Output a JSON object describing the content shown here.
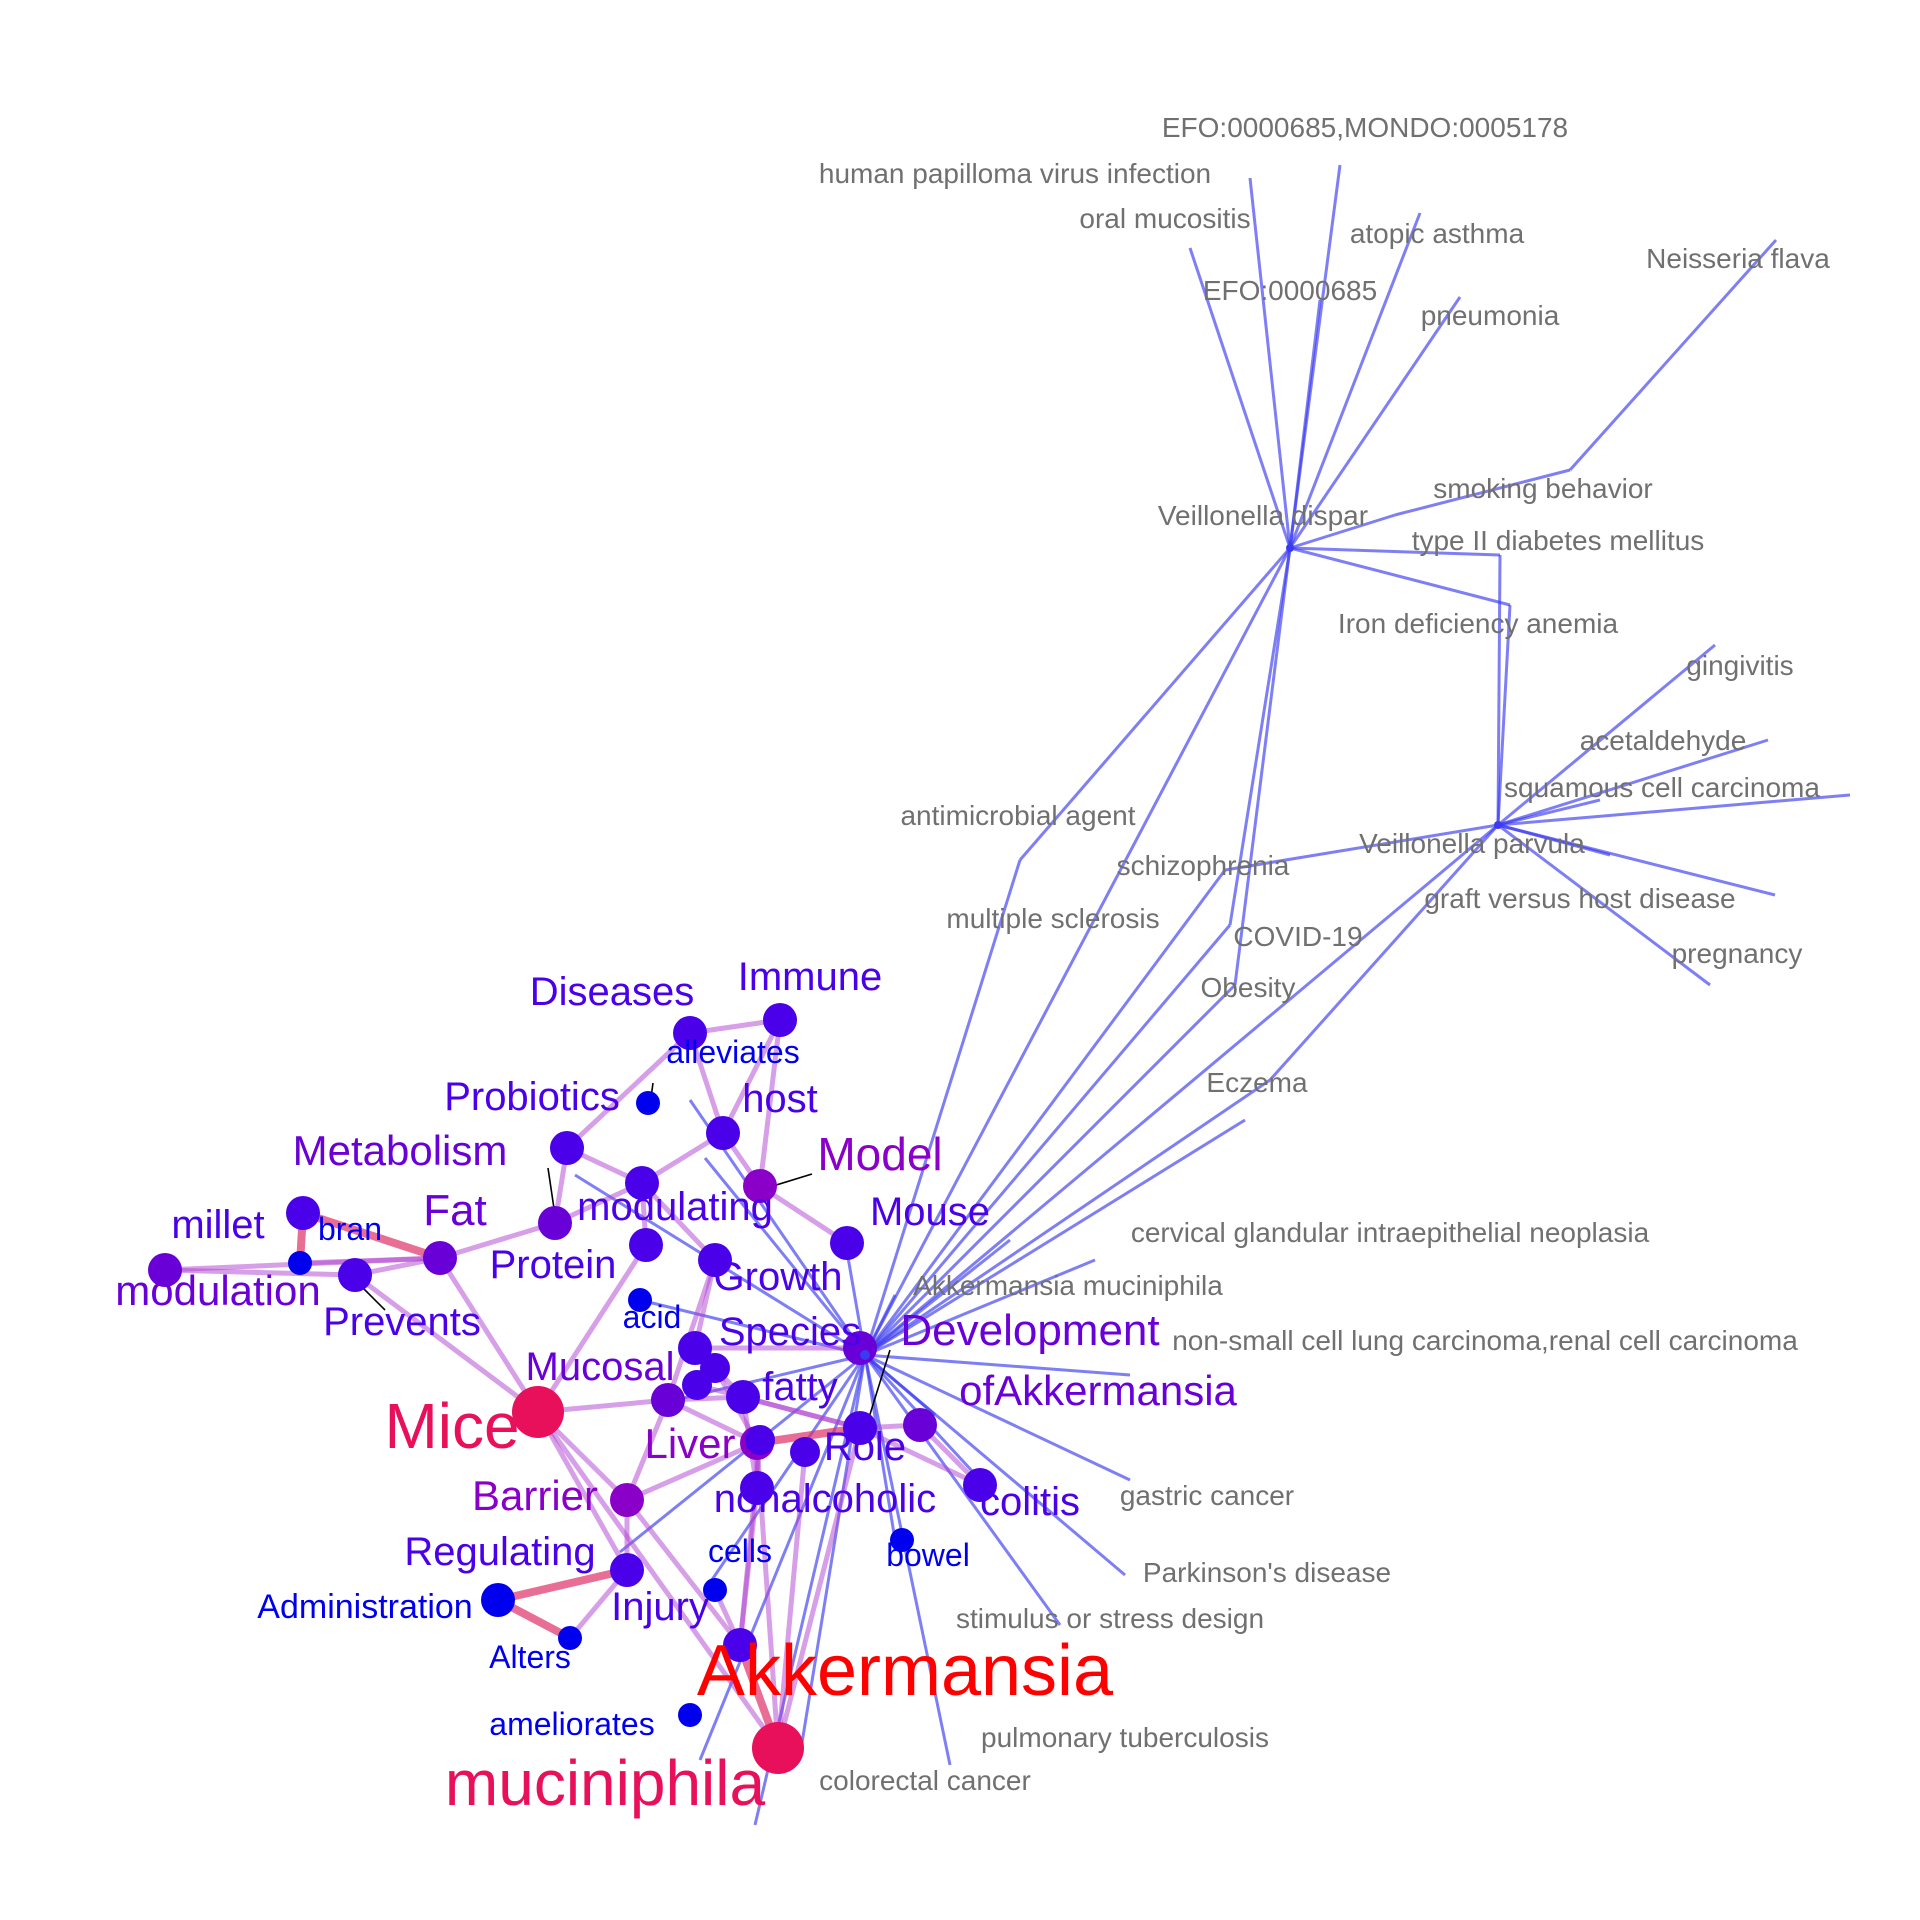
{
  "colors": {
    "background": "#ffffff",
    "word_edge": "#b040d0",
    "word_edge_strong": "#e0306a",
    "ontology_edge": "#3a3af0",
    "ontology_label": "#707070",
    "hub_red": "#ff0000",
    "hub_crimson": "#e8105a",
    "word_blue": "#0000ee",
    "word_indigo": "#4a00e8",
    "word_violet": "#6a00d8",
    "word_purple": "#8a00c8"
  },
  "word_nodes": [
    {
      "id": "akkermansia",
      "label": "Akkermansia",
      "color": "#ff0000",
      "size": 72
    },
    {
      "id": "muciniphila",
      "label": "muciniphila",
      "color": "#e8105a",
      "size": 64
    },
    {
      "id": "mice",
      "label": "Mice",
      "color": "#e8105a",
      "size": 64
    },
    {
      "id": "diseases",
      "label": "Diseases",
      "color": "#4a00e8",
      "size": 40
    },
    {
      "id": "immune",
      "label": "Immune",
      "color": "#4a00e8",
      "size": 40
    },
    {
      "id": "alleviates",
      "label": "alleviates",
      "color": "#0000ee",
      "size": 32
    },
    {
      "id": "probiotics",
      "label": "Probiotics",
      "color": "#4a00e8",
      "size": 40
    },
    {
      "id": "host",
      "label": "host",
      "color": "#4a00e8",
      "size": 40
    },
    {
      "id": "metabolism",
      "label": "Metabolism",
      "color": "#6a00d8",
      "size": 42
    },
    {
      "id": "model",
      "label": "Model",
      "color": "#8a00c8",
      "size": 46
    },
    {
      "id": "modulating",
      "label": "modulating",
      "color": "#4a00e8",
      "size": 40
    },
    {
      "id": "mouse",
      "label": "Mouse",
      "color": "#4a00e8",
      "size": 40
    },
    {
      "id": "fat",
      "label": "Fat",
      "color": "#6a00d8",
      "size": 44
    },
    {
      "id": "millet",
      "label": "millet",
      "color": "#4a00e8",
      "size": 40
    },
    {
      "id": "bran",
      "label": "bran",
      "color": "#0000ee",
      "size": 32
    },
    {
      "id": "protein",
      "label": "Protein",
      "color": "#4a00e8",
      "size": 40
    },
    {
      "id": "growth",
      "label": "Growth",
      "color": "#4a00e8",
      "size": 40
    },
    {
      "id": "modulation",
      "label": "modulation",
      "color": "#6a00d8",
      "size": 42
    },
    {
      "id": "prevents",
      "label": "Prevents",
      "color": "#4a00e8",
      "size": 40
    },
    {
      "id": "acid",
      "label": "acid",
      "color": "#0000ee",
      "size": 32
    },
    {
      "id": "species",
      "label": "Species",
      "color": "#4a00e8",
      "size": 40
    },
    {
      "id": "development",
      "label": "Development",
      "color": "#6a00d8",
      "size": 44
    },
    {
      "id": "mucosal",
      "label": "Mucosal",
      "color": "#6a00d8",
      "size": 40
    },
    {
      "id": "fatty",
      "label": "fatty",
      "color": "#4a00e8",
      "size": 40
    },
    {
      "id": "ofakkermansia",
      "label": "ofAkkermansia",
      "color": "#6a00d8",
      "size": 42
    },
    {
      "id": "liver",
      "label": "Liver",
      "color": "#8a00c8",
      "size": 42
    },
    {
      "id": "role",
      "label": "Role",
      "color": "#4a00e8",
      "size": 40
    },
    {
      "id": "barrier",
      "label": "Barrier",
      "color": "#8a00c8",
      "size": 42
    },
    {
      "id": "nonalcoholic",
      "label": "nonalcoholic",
      "color": "#4a00e8",
      "size": 40
    },
    {
      "id": "colitis",
      "label": "colitis",
      "color": "#4a00e8",
      "size": 40
    },
    {
      "id": "regulating",
      "label": "Regulating",
      "color": "#4a00e8",
      "size": 40
    },
    {
      "id": "cells",
      "label": "cells",
      "color": "#0000ee",
      "size": 32
    },
    {
      "id": "bowel",
      "label": "bowel",
      "color": "#0000ee",
      "size": 32
    },
    {
      "id": "administration",
      "label": "Administration",
      "color": "#0000ee",
      "size": 34
    },
    {
      "id": "injury",
      "label": "Injury",
      "color": "#4a00e8",
      "size": 40
    },
    {
      "id": "alters",
      "label": "Alters",
      "color": "#0000ee",
      "size": 32
    },
    {
      "id": "ameliorates",
      "label": "ameliorates",
      "color": "#0000ee",
      "size": 32
    }
  ],
  "ontology_nodes": [
    {
      "id": "efo_mondo",
      "label": "EFO:0000685,MONDO:0005178"
    },
    {
      "id": "hpv",
      "label": "human papilloma virus infection"
    },
    {
      "id": "oral_mucositis",
      "label": "oral mucositis"
    },
    {
      "id": "atopic_asthma",
      "label": "atopic asthma"
    },
    {
      "id": "neisseria",
      "label": "Neisseria flava"
    },
    {
      "id": "efo",
      "label": "EFO:0000685"
    },
    {
      "id": "pneumonia",
      "label": "pneumonia"
    },
    {
      "id": "smoking",
      "label": "smoking behavior"
    },
    {
      "id": "vdispar",
      "label": "Veillonella dispar"
    },
    {
      "id": "t2dm",
      "label": "type II diabetes mellitus"
    },
    {
      "id": "ida",
      "label": "Iron deficiency anemia"
    },
    {
      "id": "gingivitis",
      "label": "gingivitis"
    },
    {
      "id": "acetaldehyde",
      "label": "acetaldehyde"
    },
    {
      "id": "scc",
      "label": "squamous cell carcinoma"
    },
    {
      "id": "antimicrobial",
      "label": "antimicrobial agent"
    },
    {
      "id": "vparvula",
      "label": "Veillonella parvula"
    },
    {
      "id": "schizophrenia",
      "label": "schizophrenia"
    },
    {
      "id": "gvhd",
      "label": "graft versus host disease"
    },
    {
      "id": "ms",
      "label": "multiple sclerosis"
    },
    {
      "id": "covid",
      "label": "COVID-19"
    },
    {
      "id": "pregnancy",
      "label": "pregnancy"
    },
    {
      "id": "obesity",
      "label": "Obesity"
    },
    {
      "id": "eczema",
      "label": "Eczema"
    },
    {
      "id": "cgin",
      "label": "cervical glandular intraepithelial neoplasia"
    },
    {
      "id": "akk_species",
      "label": "Akkermansia muciniphila"
    },
    {
      "id": "nsclc",
      "label": "non-small cell lung carcinoma,renal cell carcinoma"
    },
    {
      "id": "gastric",
      "label": "gastric cancer"
    },
    {
      "id": "parkinsons",
      "label": "Parkinson's disease"
    },
    {
      "id": "stress",
      "label": "stimulus or stress design"
    },
    {
      "id": "tb",
      "label": "pulmonary tuberculosis"
    },
    {
      "id": "crc",
      "label": "colorectal cancer"
    }
  ]
}
